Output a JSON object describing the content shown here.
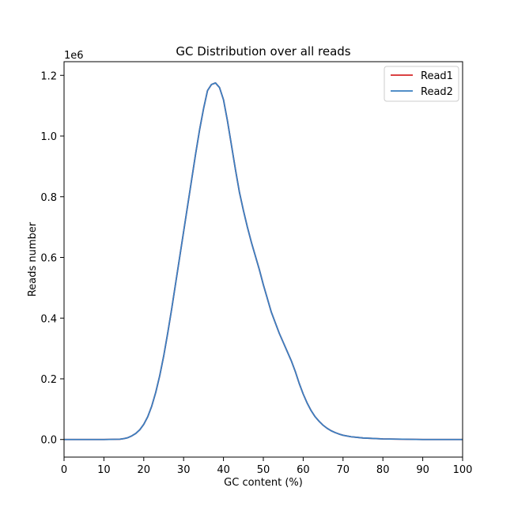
{
  "chart_data": {
    "type": "line",
    "title": "GC Distribution over all reads",
    "xlabel": "GC content (%)",
    "ylabel": "Reads number",
    "y_offset_label": "1e6",
    "xlim": [
      0,
      100
    ],
    "ylim": [
      -0.058,
      1.245
    ],
    "x_ticks": [
      0,
      10,
      20,
      30,
      40,
      50,
      60,
      70,
      80,
      90,
      100
    ],
    "x_tick_labels": [
      "0",
      "10",
      "20",
      "30",
      "40",
      "50",
      "60",
      "70",
      "80",
      "90",
      "100"
    ],
    "y_ticks": [
      0.0,
      0.2,
      0.4,
      0.6,
      0.8,
      1.0,
      1.2
    ],
    "y_tick_labels": [
      "0.0",
      "0.2",
      "0.4",
      "0.6",
      "0.8",
      "1.0",
      "1.2"
    ],
    "grid": false,
    "legend_position": "top-right",
    "x": [
      0,
      5,
      10,
      14,
      15,
      16,
      17,
      18,
      19,
      20,
      21,
      22,
      23,
      24,
      25,
      26,
      27,
      28,
      29,
      30,
      31,
      32,
      33,
      34,
      35,
      36,
      37,
      38,
      39,
      40,
      41,
      42,
      43,
      44,
      45,
      46,
      47,
      48,
      49,
      50,
      51,
      52,
      53,
      54,
      55,
      56,
      57,
      58,
      59,
      60,
      61,
      62,
      63,
      64,
      65,
      66,
      67,
      68,
      69,
      70,
      72,
      75,
      80,
      85,
      90,
      95,
      100
    ],
    "series": [
      {
        "name": "Read1",
        "color": "#d62728",
        "values": [
          0.0,
          0.0,
          0.0,
          0.001,
          0.003,
          0.006,
          0.012,
          0.02,
          0.032,
          0.05,
          0.075,
          0.11,
          0.155,
          0.21,
          0.275,
          0.35,
          0.43,
          0.515,
          0.6,
          0.685,
          0.77,
          0.855,
          0.94,
          1.02,
          1.09,
          1.15,
          1.17,
          1.175,
          1.16,
          1.12,
          1.05,
          0.97,
          0.89,
          0.815,
          0.755,
          0.7,
          0.65,
          0.605,
          0.56,
          0.51,
          0.465,
          0.42,
          0.385,
          0.35,
          0.32,
          0.29,
          0.26,
          0.225,
          0.185,
          0.15,
          0.12,
          0.095,
          0.075,
          0.06,
          0.047,
          0.037,
          0.029,
          0.023,
          0.018,
          0.014,
          0.009,
          0.005,
          0.002,
          0.001,
          0.0,
          0.0,
          0.0
        ]
      },
      {
        "name": "Read2",
        "color": "#3a7fc1",
        "values": [
          0.0,
          0.0,
          0.0,
          0.001,
          0.003,
          0.006,
          0.012,
          0.02,
          0.032,
          0.05,
          0.075,
          0.11,
          0.155,
          0.21,
          0.275,
          0.35,
          0.43,
          0.515,
          0.6,
          0.685,
          0.77,
          0.855,
          0.94,
          1.02,
          1.09,
          1.15,
          1.17,
          1.175,
          1.16,
          1.12,
          1.05,
          0.97,
          0.89,
          0.815,
          0.755,
          0.7,
          0.65,
          0.605,
          0.56,
          0.51,
          0.465,
          0.42,
          0.385,
          0.35,
          0.32,
          0.29,
          0.26,
          0.225,
          0.185,
          0.15,
          0.12,
          0.095,
          0.075,
          0.06,
          0.047,
          0.037,
          0.029,
          0.023,
          0.018,
          0.014,
          0.009,
          0.005,
          0.002,
          0.001,
          0.0,
          0.0,
          0.0
        ]
      }
    ]
  }
}
